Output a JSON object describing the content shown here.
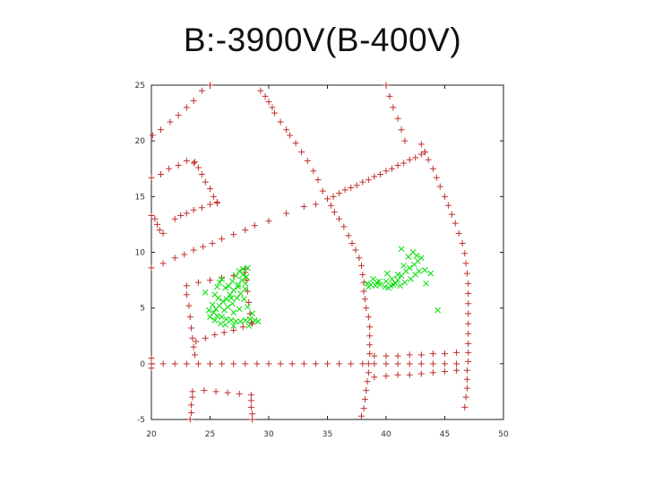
{
  "title": "B:-3900V(B-400V)",
  "chart_data": {
    "type": "scatter",
    "xlim": [
      20,
      50
    ],
    "ylim": [
      -5,
      25
    ],
    "x_ticks": [
      "20",
      "25",
      "30",
      "35",
      "40",
      "45",
      "50"
    ],
    "y_ticks": [
      "-5",
      "0",
      "5",
      "10",
      "15",
      "20",
      "25"
    ],
    "grid": false,
    "legend": "none",
    "series": [
      {
        "marker": "plus",
        "color": "#c03030",
        "points": [
          [
            20.1,
            20.5
          ],
          [
            20.8,
            21.0
          ],
          [
            21.6,
            21.7
          ],
          [
            22.3,
            22.3
          ],
          [
            23.0,
            23.0
          ],
          [
            23.6,
            23.6
          ],
          [
            24.3,
            24.5
          ],
          [
            25.0,
            25.0
          ],
          [
            20.0,
            16.7
          ],
          [
            20.8,
            17.0
          ],
          [
            21.5,
            17.5
          ],
          [
            22.3,
            17.8
          ],
          [
            23.0,
            18.2
          ],
          [
            23.6,
            18.0
          ],
          [
            23.7,
            18.1
          ],
          [
            24.0,
            17.6
          ],
          [
            24.3,
            17.0
          ],
          [
            24.6,
            16.3
          ],
          [
            25.0,
            15.7
          ],
          [
            25.3,
            15.0
          ],
          [
            25.6,
            14.4
          ],
          [
            20.0,
            13.3
          ],
          [
            20.3,
            13.0
          ],
          [
            20.5,
            12.5
          ],
          [
            20.7,
            12.0
          ],
          [
            21.0,
            11.7
          ],
          [
            22.0,
            13.0
          ],
          [
            22.5,
            13.3
          ],
          [
            23.0,
            13.5
          ],
          [
            23.6,
            13.8
          ],
          [
            24.3,
            14.0
          ],
          [
            25.0,
            14.3
          ],
          [
            25.6,
            14.5
          ],
          [
            20.0,
            8.6
          ],
          [
            21.0,
            9.0
          ],
          [
            22.0,
            9.5
          ],
          [
            22.8,
            9.8
          ],
          [
            23.6,
            10.2
          ],
          [
            24.4,
            10.5
          ],
          [
            25.2,
            10.8
          ],
          [
            26.0,
            11.2
          ],
          [
            27.0,
            11.6
          ],
          [
            28.0,
            12.0
          ],
          [
            28.8,
            12.4
          ],
          [
            30.0,
            12.8
          ],
          [
            31.5,
            13.5
          ],
          [
            33.0,
            14.1
          ],
          [
            34.0,
            14.3
          ],
          [
            29.3,
            24.5
          ],
          [
            29.7,
            24.0
          ],
          [
            30.0,
            23.5
          ],
          [
            30.3,
            23.0
          ],
          [
            30.5,
            22.5
          ],
          [
            31.0,
            21.7
          ],
          [
            31.5,
            21.0
          ],
          [
            31.8,
            20.5
          ],
          [
            32.3,
            19.8
          ],
          [
            32.8,
            19.0
          ],
          [
            33.3,
            18.2
          ],
          [
            33.8,
            17.3
          ],
          [
            34.2,
            16.5
          ],
          [
            34.6,
            15.5
          ],
          [
            35.0,
            14.8
          ],
          [
            35.3,
            14.2
          ],
          [
            35.6,
            13.6
          ],
          [
            36.0,
            13.0
          ],
          [
            36.4,
            12.3
          ],
          [
            36.8,
            11.5
          ],
          [
            37.1,
            10.8
          ],
          [
            37.4,
            10.2
          ],
          [
            37.7,
            9.5
          ],
          [
            37.9,
            8.8
          ],
          [
            38.0,
            8.0
          ],
          [
            38.1,
            7.3
          ],
          [
            38.1,
            6.5
          ],
          [
            38.2,
            5.8
          ],
          [
            38.3,
            5.0
          ],
          [
            38.5,
            4.2
          ],
          [
            38.6,
            3.3
          ],
          [
            38.6,
            2.5
          ],
          [
            38.6,
            1.7
          ],
          [
            38.6,
            0.9
          ],
          [
            38.5,
            0.0
          ],
          [
            38.5,
            -0.8
          ],
          [
            38.4,
            -1.6
          ],
          [
            38.3,
            -2.4
          ],
          [
            38.2,
            -3.2
          ],
          [
            38.1,
            -4.0
          ],
          [
            37.9,
            -4.7
          ],
          [
            35.5,
            15.0
          ],
          [
            36.0,
            15.3
          ],
          [
            36.5,
            15.6
          ],
          [
            37.0,
            15.8
          ],
          [
            37.5,
            16.0
          ],
          [
            38.0,
            16.3
          ],
          [
            38.5,
            16.5
          ],
          [
            39.0,
            16.8
          ],
          [
            39.5,
            17.0
          ],
          [
            40.0,
            17.3
          ],
          [
            40.5,
            17.5
          ],
          [
            41.0,
            17.8
          ],
          [
            41.5,
            18.0
          ],
          [
            42.0,
            18.3
          ],
          [
            42.5,
            18.5
          ],
          [
            43.0,
            18.8
          ],
          [
            43.3,
            19.0
          ],
          [
            40.0,
            25.0
          ],
          [
            40.3,
            24.0
          ],
          [
            40.6,
            23.0
          ],
          [
            41.0,
            22.0
          ],
          [
            41.3,
            21.0
          ],
          [
            41.6,
            20.0
          ],
          [
            43.0,
            19.7
          ],
          [
            43.3,
            19.0
          ],
          [
            43.6,
            18.3
          ],
          [
            44.0,
            17.5
          ],
          [
            44.3,
            16.7
          ],
          [
            44.6,
            15.9
          ],
          [
            45.0,
            15.0
          ],
          [
            45.3,
            14.2
          ],
          [
            45.6,
            13.4
          ],
          [
            45.9,
            12.6
          ],
          [
            46.2,
            11.7
          ],
          [
            46.5,
            10.8
          ],
          [
            46.7,
            9.9
          ],
          [
            46.8,
            9.0
          ],
          [
            46.9,
            8.1
          ],
          [
            47.0,
            7.2
          ],
          [
            47.0,
            6.3
          ],
          [
            47.0,
            5.4
          ],
          [
            47.0,
            4.5
          ],
          [
            47.0,
            3.6
          ],
          [
            47.0,
            2.7
          ],
          [
            47.0,
            1.8
          ],
          [
            47.0,
            1.0
          ],
          [
            47.0,
            0.2
          ],
          [
            46.9,
            -0.6
          ],
          [
            46.9,
            -1.4
          ],
          [
            46.9,
            -2.2
          ],
          [
            46.8,
            -3.0
          ],
          [
            46.7,
            -3.9
          ],
          [
            20.0,
            0.0
          ],
          [
            21.0,
            0.0
          ],
          [
            22.0,
            0.0
          ],
          [
            23.0,
            0.0
          ],
          [
            24.0,
            0.0
          ],
          [
            25.0,
            0.0
          ],
          [
            26.0,
            0.0
          ],
          [
            27.0,
            0.0
          ],
          [
            28.0,
            0.0
          ],
          [
            29.0,
            0.0
          ],
          [
            30.0,
            0.0
          ],
          [
            31.0,
            0.0
          ],
          [
            32.0,
            0.0
          ],
          [
            33.0,
            0.0
          ],
          [
            34.0,
            0.0
          ],
          [
            35.0,
            0.0
          ],
          [
            36.0,
            0.0
          ],
          [
            37.0,
            0.0
          ],
          [
            38.0,
            0.0
          ],
          [
            39.0,
            0.0
          ],
          [
            40.0,
            0.0
          ],
          [
            41.0,
            0.0
          ],
          [
            42.0,
            0.0
          ],
          [
            43.0,
            0.0
          ],
          [
            44.0,
            0.0
          ],
          [
            45.0,
            0.0
          ],
          [
            46.0,
            0.0
          ],
          [
            39.0,
            0.7
          ],
          [
            40.0,
            0.7
          ],
          [
            41.0,
            0.7
          ],
          [
            42.0,
            0.8
          ],
          [
            43.0,
            0.8
          ],
          [
            44.0,
            0.9
          ],
          [
            45.0,
            0.9
          ],
          [
            46.0,
            1.0
          ],
          [
            39.0,
            -1.2
          ],
          [
            40.0,
            -1.1
          ],
          [
            41.0,
            -1.0
          ],
          [
            42.0,
            -1.0
          ],
          [
            43.0,
            -0.9
          ],
          [
            44.0,
            -0.8
          ],
          [
            45.0,
            -0.7
          ],
          [
            46.0,
            -0.6
          ],
          [
            20.0,
            0.5
          ],
          [
            20.0,
            -0.4
          ],
          [
            23.0,
            7.0
          ],
          [
            24.0,
            7.3
          ],
          [
            25.0,
            7.5
          ],
          [
            26.0,
            7.7
          ],
          [
            27.0,
            7.9
          ],
          [
            28.0,
            8.2
          ],
          [
            23.0,
            6.2
          ],
          [
            23.2,
            5.2
          ],
          [
            23.3,
            4.2
          ],
          [
            23.4,
            3.2
          ],
          [
            23.5,
            2.3
          ],
          [
            23.6,
            1.5
          ],
          [
            23.7,
            0.8
          ],
          [
            23.8,
            2.0
          ],
          [
            24.6,
            2.3
          ],
          [
            25.4,
            2.6
          ],
          [
            26.2,
            2.8
          ],
          [
            27.0,
            3.0
          ],
          [
            27.8,
            3.3
          ],
          [
            28.6,
            3.6
          ],
          [
            28.0,
            8.5
          ],
          [
            28.1,
            7.5
          ],
          [
            28.2,
            6.5
          ],
          [
            28.3,
            5.5
          ],
          [
            28.4,
            4.5
          ],
          [
            28.5,
            3.7
          ],
          [
            23.5,
            -2.5
          ],
          [
            24.5,
            -2.4
          ],
          [
            25.5,
            -2.5
          ],
          [
            26.5,
            -2.6
          ],
          [
            27.5,
            -2.7
          ],
          [
            28.5,
            -2.8
          ],
          [
            23.5,
            -3.0
          ],
          [
            23.4,
            -3.7
          ],
          [
            23.4,
            -4.4
          ],
          [
            23.3,
            -5.0
          ],
          [
            28.5,
            -3.3
          ],
          [
            28.5,
            -3.9
          ],
          [
            28.6,
            -4.5
          ],
          [
            28.6,
            -5.0
          ]
        ]
      },
      {
        "marker": "x",
        "color": "#00e000",
        "points": [
          [
            25.4,
            6.2
          ],
          [
            25.6,
            6.9
          ],
          [
            25.8,
            7.3
          ],
          [
            26.0,
            7.6
          ],
          [
            26.3,
            6.8
          ],
          [
            26.6,
            7.0
          ],
          [
            26.9,
            7.4
          ],
          [
            27.2,
            7.9
          ],
          [
            27.5,
            8.3
          ],
          [
            27.8,
            8.0
          ],
          [
            28.1,
            7.8
          ],
          [
            27.7,
            7.5
          ],
          [
            27.4,
            7.1
          ],
          [
            27.0,
            6.6
          ],
          [
            26.7,
            6.2
          ],
          [
            26.4,
            5.8
          ],
          [
            26.1,
            5.6
          ],
          [
            25.8,
            5.2
          ],
          [
            25.5,
            4.9
          ],
          [
            25.3,
            4.6
          ],
          [
            25.6,
            4.3
          ],
          [
            26.0,
            4.2
          ],
          [
            26.4,
            4.0
          ],
          [
            26.8,
            3.9
          ],
          [
            27.2,
            3.8
          ],
          [
            27.6,
            3.8
          ],
          [
            28.0,
            3.9
          ],
          [
            28.4,
            4.0
          ],
          [
            28.8,
            3.9
          ],
          [
            29.1,
            3.8
          ],
          [
            28.6,
            4.5
          ],
          [
            28.2,
            5.1
          ],
          [
            27.9,
            5.8
          ],
          [
            27.6,
            6.3
          ],
          [
            27.3,
            5.9
          ],
          [
            26.9,
            5.4
          ],
          [
            26.5,
            5.1
          ],
          [
            26.2,
            4.8
          ],
          [
            27.0,
            4.6
          ],
          [
            27.5,
            4.9
          ],
          [
            28.0,
            6.7
          ],
          [
            28.0,
            7.2
          ],
          [
            27.8,
            8.5
          ],
          [
            28.2,
            8.6
          ],
          [
            25.2,
            5.3
          ],
          [
            24.9,
            4.8
          ],
          [
            25.0,
            4.2
          ],
          [
            25.4,
            3.9
          ],
          [
            25.9,
            3.6
          ],
          [
            26.3,
            3.5
          ],
          [
            27.0,
            3.4
          ],
          [
            28.3,
            3.4
          ],
          [
            24.6,
            6.4
          ],
          [
            25.7,
            5.9
          ],
          [
            26.8,
            5.9
          ],
          [
            27.4,
            6.9
          ],
          [
            40.2,
            6.8
          ],
          [
            40.6,
            7.1
          ],
          [
            41.0,
            7.5
          ],
          [
            41.3,
            7.9
          ],
          [
            41.7,
            8.3
          ],
          [
            42.0,
            8.6
          ],
          [
            42.4,
            8.9
          ],
          [
            42.7,
            9.2
          ],
          [
            43.0,
            9.5
          ],
          [
            42.5,
            8.0
          ],
          [
            42.1,
            7.6
          ],
          [
            41.6,
            7.3
          ],
          [
            41.2,
            7.0
          ],
          [
            40.8,
            7.2
          ],
          [
            40.4,
            7.0
          ],
          [
            39.9,
            6.9
          ],
          [
            39.5,
            7.1
          ],
          [
            39.1,
            7.0
          ],
          [
            38.7,
            7.1
          ],
          [
            38.4,
            7.2
          ],
          [
            38.9,
            7.6
          ],
          [
            39.4,
            7.4
          ],
          [
            40.0,
            7.4
          ],
          [
            40.5,
            7.6
          ],
          [
            41.0,
            8.0
          ],
          [
            41.5,
            8.8
          ],
          [
            41.9,
            9.6
          ],
          [
            42.3,
            10.0
          ],
          [
            42.8,
            8.3
          ],
          [
            43.3,
            8.4
          ],
          [
            43.8,
            8.1
          ],
          [
            43.4,
            7.2
          ],
          [
            44.4,
            4.8
          ],
          [
            41.3,
            10.3
          ],
          [
            42.6,
            9.7
          ],
          [
            40.1,
            8.1
          ],
          [
            39.2,
            7.3
          ],
          [
            38.5,
            6.9
          ]
        ]
      }
    ]
  }
}
